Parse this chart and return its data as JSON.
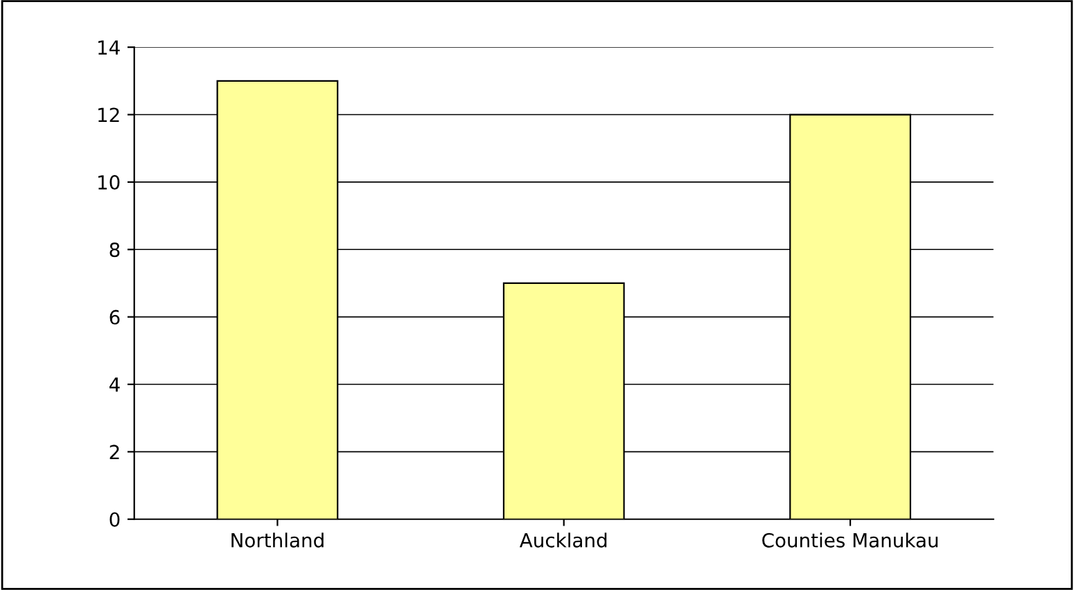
{
  "chart_data": {
    "type": "bar",
    "categories": [
      "Northland",
      "Auckland",
      "Counties Manukau"
    ],
    "values": [
      13,
      7,
      12
    ],
    "color": "#ffff99",
    "ylim": [
      0,
      14
    ],
    "yticks": [
      0,
      2,
      4,
      6,
      8,
      10,
      12,
      14
    ],
    "grid": "y"
  }
}
